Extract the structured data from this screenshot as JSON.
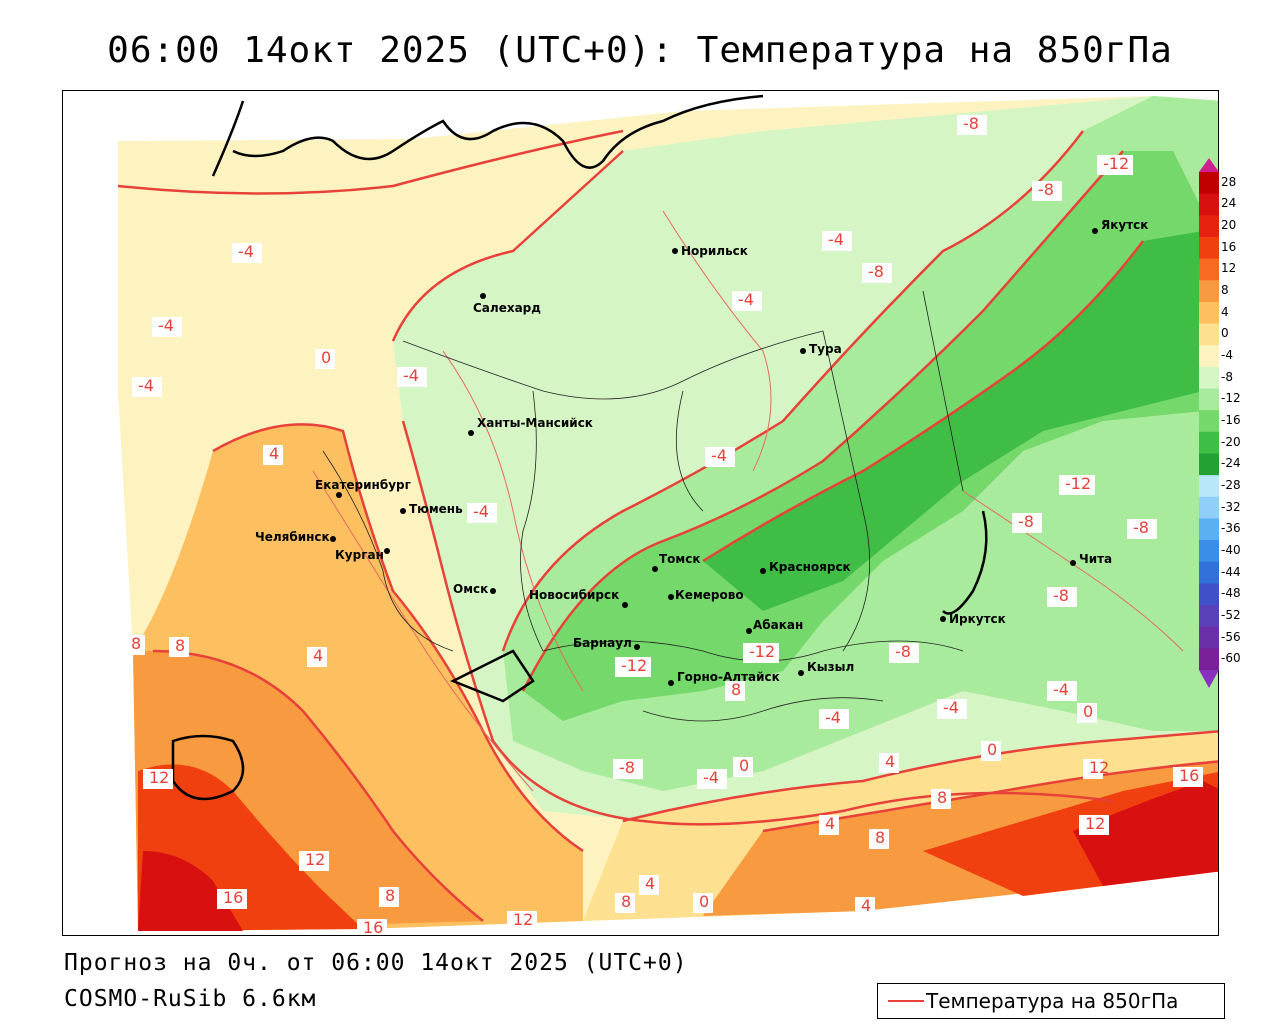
{
  "title": "06:00 14окт 2025 (UTC+0): Температура на 850гПа",
  "footer": {
    "forecast": "Прогноз на 0ч. от 06:00 14окт 2025 (UTC+0)",
    "model": "COSMO-RuSib 6.6км"
  },
  "legend": {
    "label": "Температура на 850гПа",
    "line_color": "#e8413a"
  },
  "colorbar": {
    "ticks": [
      "28",
      "24",
      "20",
      "16",
      "12",
      "8",
      "4",
      "0",
      "-4",
      "-8",
      "-12",
      "-16",
      "-20",
      "-24",
      "-28",
      "-32",
      "-36",
      "-40",
      "-44",
      "-48",
      "-52",
      "-56",
      "-60"
    ],
    "colors": [
      "#c00000",
      "#d81010",
      "#e82010",
      "#f04010",
      "#f86a20",
      "#f89a40",
      "#fcc060",
      "#fde090",
      "#fdf3c0",
      "#d6f5c4",
      "#a8eb9c",
      "#74d86a",
      "#3fbd44",
      "#25a033",
      "#b8e8f8",
      "#90d0f8",
      "#5ab0f0",
      "#3a8ee8",
      "#3070d8",
      "#4050c8",
      "#5a40b8",
      "#6a30a8",
      "#7a2098"
    ]
  },
  "cities": [
    {
      "name": "Салехард"
    },
    {
      "name": "Норильск"
    },
    {
      "name": "Якутск"
    },
    {
      "name": "Тура"
    },
    {
      "name": "Ханты-Мансийск"
    },
    {
      "name": "Екатеринбург"
    },
    {
      "name": "Тюмень"
    },
    {
      "name": "Челябинск"
    },
    {
      "name": "Курган"
    },
    {
      "name": "Омск"
    },
    {
      "name": "Новосибирск"
    },
    {
      "name": "Томск"
    },
    {
      "name": "Кемерово"
    },
    {
      "name": "Красноярск"
    },
    {
      "name": "Барнаул"
    },
    {
      "name": "Абакан"
    },
    {
      "name": "Кызыл"
    },
    {
      "name": "Горно-Алтайск"
    },
    {
      "name": "Иркутск"
    },
    {
      "name": "Чита"
    }
  ],
  "contour_labels": [
    "-8",
    "-12",
    "-8",
    "-4",
    "-4",
    "-8",
    "-4",
    "-4",
    "-4",
    "-4",
    "0",
    "-4",
    "4",
    "-4",
    "-8",
    "-12",
    "-8",
    "-8",
    "-12",
    "-12",
    "-8",
    "-4",
    "0",
    "-4",
    "0",
    "8",
    "-4",
    "-8",
    "-4",
    "4",
    "0",
    "8",
    "4",
    "8",
    "8",
    "4",
    "12",
    "12",
    "16",
    "16",
    "12",
    "8",
    "8",
    "4",
    "0",
    "4",
    "12",
    "16",
    "12",
    "8"
  ]
}
